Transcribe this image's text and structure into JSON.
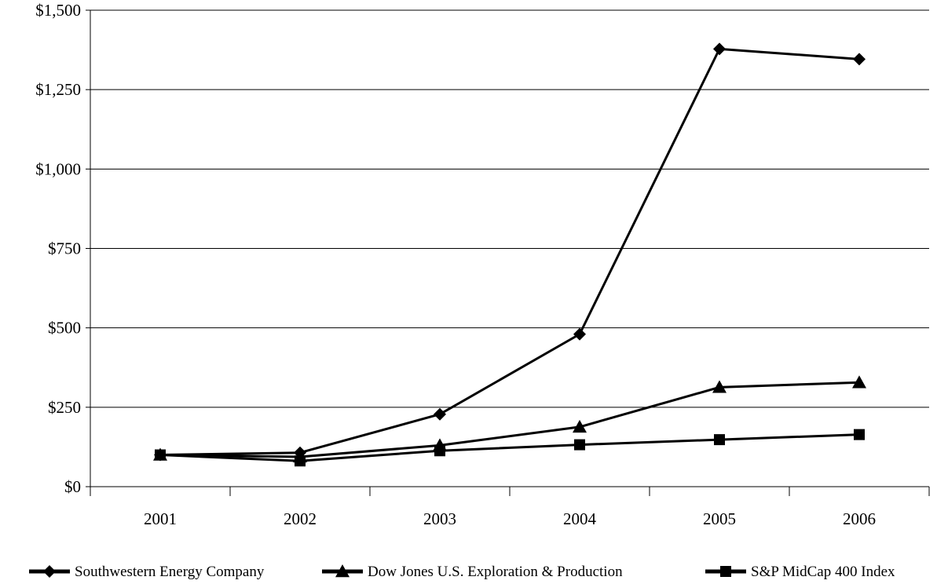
{
  "chart_data": {
    "type": "line",
    "title": "",
    "xlabel": "",
    "ylabel": "",
    "categories": [
      "2001",
      "2002",
      "2003",
      "2004",
      "2005",
      "2006"
    ],
    "ylim": [
      0,
      1500
    ],
    "yticks": [
      0,
      250,
      500,
      750,
      1000,
      1250,
      1500
    ],
    "ytick_labels": [
      "$0",
      "$250",
      "$500",
      "$750",
      "$1,000",
      "$1,250",
      "$1,500"
    ],
    "grid": "horizontal",
    "legend_position": "bottom",
    "series": [
      {
        "name": "Southwestern Energy Company",
        "marker": "diamond",
        "color": "#000000",
        "values": [
          100,
          107,
          228,
          480,
          1378,
          1346
        ]
      },
      {
        "name": "Dow Jones U.S. Exploration & Production",
        "marker": "triangle",
        "color": "#000000",
        "values": [
          100,
          94,
          130,
          188,
          313,
          328
        ]
      },
      {
        "name": "S&P MidCap 400 Index",
        "marker": "square",
        "color": "#000000",
        "values": [
          100,
          81,
          113,
          132,
          148,
          164
        ]
      }
    ]
  }
}
